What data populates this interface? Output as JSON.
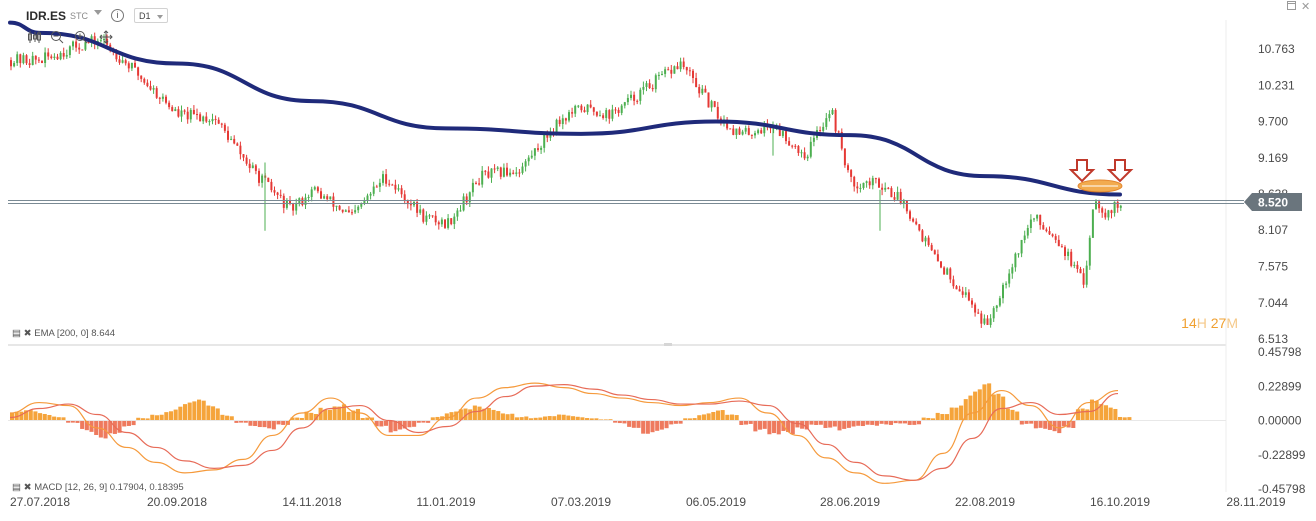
{
  "toolbar": {
    "ticker": "IDR.ES",
    "ticker_suffix": "STC",
    "interval": "D1",
    "info_icon": "info-icon",
    "tools": [
      "candles-icon",
      "zoom-out-icon",
      "zoom-in-icon",
      "move-icon"
    ]
  },
  "window_controls": [
    "restore-icon",
    "close-icon"
  ],
  "countdown": {
    "hours": "14",
    "hours_unit": "H",
    "minutes": "27",
    "minutes_unit": "M"
  },
  "colors": {
    "up": "#4caf50",
    "down": "#e53935",
    "ema": "#1f2a7a",
    "price_tag": "#6a757d",
    "macd_hist": "#f5a43b",
    "macd_hist_neg": "#ee7a5e",
    "macd_line": "#f59a3c",
    "signal_line": "#e76b58",
    "marker": "#f1a33c",
    "arrow": "#c0392b"
  },
  "chart_data": [
    {
      "type": "candlestick",
      "title": "IDR.ES",
      "interval": "D1",
      "x_ticks": [
        "27.07.2018",
        "20.09.2018",
        "14.11.2018",
        "11.01.2019",
        "07.03.2019",
        "06.05.2019",
        "28.06.2019",
        "22.08.2019",
        "16.10.2019",
        "28.11.2019"
      ],
      "y_ticks": [
        "10.763",
        "10.231",
        "9.700",
        "9.169",
        "8.638",
        "8.107",
        "7.575",
        "7.044",
        "6.513"
      ],
      "ylim": [
        6.513,
        11.1
      ],
      "last_price": "8.520",
      "legend": "EMA [200, 0] 8.644",
      "ema_200": {
        "name": "EMA [200, 0]",
        "value": "8.644",
        "x": [
          "27.07.2018",
          "20.09.2018",
          "14.11.2018",
          "11.01.2019",
          "07.03.2019",
          "06.05.2019",
          "28.06.2019",
          "22.08.2019",
          "16.10.2019"
        ],
        "y": [
          11.0,
          10.55,
          10.0,
          9.6,
          9.52,
          9.7,
          9.5,
          8.9,
          8.63
        ]
      },
      "price_path": {
        "x": [
          "27.07.2018",
          "10.08.2018",
          "20.08.2018",
          "01.09.2018",
          "20.09.2018",
          "05.10.2018",
          "20.10.2018",
          "05.11.2018",
          "14.11.2018",
          "01.12.2018",
          "15.12.2018",
          "01.01.2019",
          "11.01.2019",
          "25.01.2019",
          "10.02.2019",
          "25.02.2019",
          "07.03.2019",
          "20.03.2019",
          "05.04.2019",
          "20.04.2019",
          "06.05.2019",
          "15.05.2019",
          "28.05.2019",
          "10.06.2019",
          "20.06.2019",
          "28.06.2019",
          "10.07.2019",
          "20.07.2019",
          "01.08.2019",
          "15.08.2019",
          "22.08.2019",
          "30.08.2019",
          "10.09.2019",
          "20.09.2019",
          "01.10.2019",
          "05.10.2019",
          "10.10.2019",
          "16.10.2019"
        ],
        "y": [
          10.6,
          10.8,
          10.9,
          10.5,
          9.8,
          9.75,
          9.0,
          8.4,
          8.7,
          8.3,
          8.9,
          8.3,
          8.2,
          8.9,
          9.0,
          9.7,
          9.9,
          9.8,
          10.2,
          10.55,
          9.8,
          9.5,
          9.65,
          9.2,
          9.9,
          8.8,
          8.8,
          8.5,
          7.7,
          7.1,
          6.7,
          7.4,
          8.3,
          8.0,
          7.3,
          8.6,
          8.35,
          8.52
        ]
      },
      "annotations": [
        "down-arrow",
        "down-arrow",
        "ellipse"
      ]
    },
    {
      "type": "macd",
      "legend": "MACD [12, 26, 9] 0.17904, 0.18395",
      "macd": "0.17904",
      "signal": "0.18395",
      "y_ticks": [
        "0.45798",
        "0.22899",
        "0.00000",
        "-0.22899",
        "-0.45798"
      ],
      "ylim": [
        -0.45798,
        0.45798
      ],
      "histogram": [
        0.06,
        0.07,
        0.05,
        0.03,
        -0.02,
        -0.08,
        -0.12,
        -0.09,
        -0.04,
        0.02,
        0.05,
        0.08,
        0.12,
        0.14,
        0.1,
        0.04,
        -0.02,
        -0.05,
        -0.06,
        -0.03,
        0.02,
        0.06,
        0.1,
        0.13,
        0.08,
        0.02,
        -0.04,
        -0.08,
        -0.06,
        -0.02,
        0.03,
        0.06,
        0.08,
        0.1,
        0.09,
        0.06,
        0.03,
        0.02,
        0.03,
        0.04,
        0.03,
        0.02,
        0.01,
        -0.02,
        -0.05,
        -0.09,
        -0.07,
        -0.03,
        0.02,
        0.05,
        0.07,
        0.04,
        -0.03,
        -0.08,
        -0.12,
        -0.1,
        -0.06,
        -0.03,
        -0.05,
        -0.07,
        -0.05,
        -0.04,
        -0.03,
        -0.02,
        -0.03,
        0.02,
        0.06,
        0.12,
        0.2,
        0.25,
        0.18,
        0.08,
        -0.03,
        -0.07,
        -0.09,
        -0.05,
        0.08,
        0.14,
        0.11,
        0.03
      ],
      "macd_line": [
        0.05,
        0.12,
        0.1,
        -0.05,
        -0.18,
        -0.28,
        -0.35,
        -0.33,
        -0.26,
        -0.1,
        0.05,
        0.15,
        0.05,
        -0.1,
        -0.1,
        0.02,
        0.15,
        0.22,
        0.25,
        0.22,
        0.18,
        0.15,
        0.12,
        0.1,
        0.12,
        0.15,
        0.05,
        -0.1,
        -0.25,
        -0.35,
        -0.42,
        -0.4,
        -0.22,
        0.05,
        0.2,
        0.1,
        -0.05,
        0.12,
        0.2
      ],
      "signal_line": [
        0.02,
        0.08,
        0.11,
        0.04,
        -0.08,
        -0.18,
        -0.27,
        -0.32,
        -0.3,
        -0.2,
        -0.05,
        0.08,
        0.1,
        0.0,
        -0.08,
        -0.04,
        0.06,
        0.16,
        0.23,
        0.24,
        0.21,
        0.17,
        0.14,
        0.11,
        0.11,
        0.13,
        0.1,
        -0.02,
        -0.16,
        -0.28,
        -0.37,
        -0.4,
        -0.32,
        -0.12,
        0.08,
        0.12,
        0.04,
        0.06,
        0.18
      ]
    }
  ]
}
